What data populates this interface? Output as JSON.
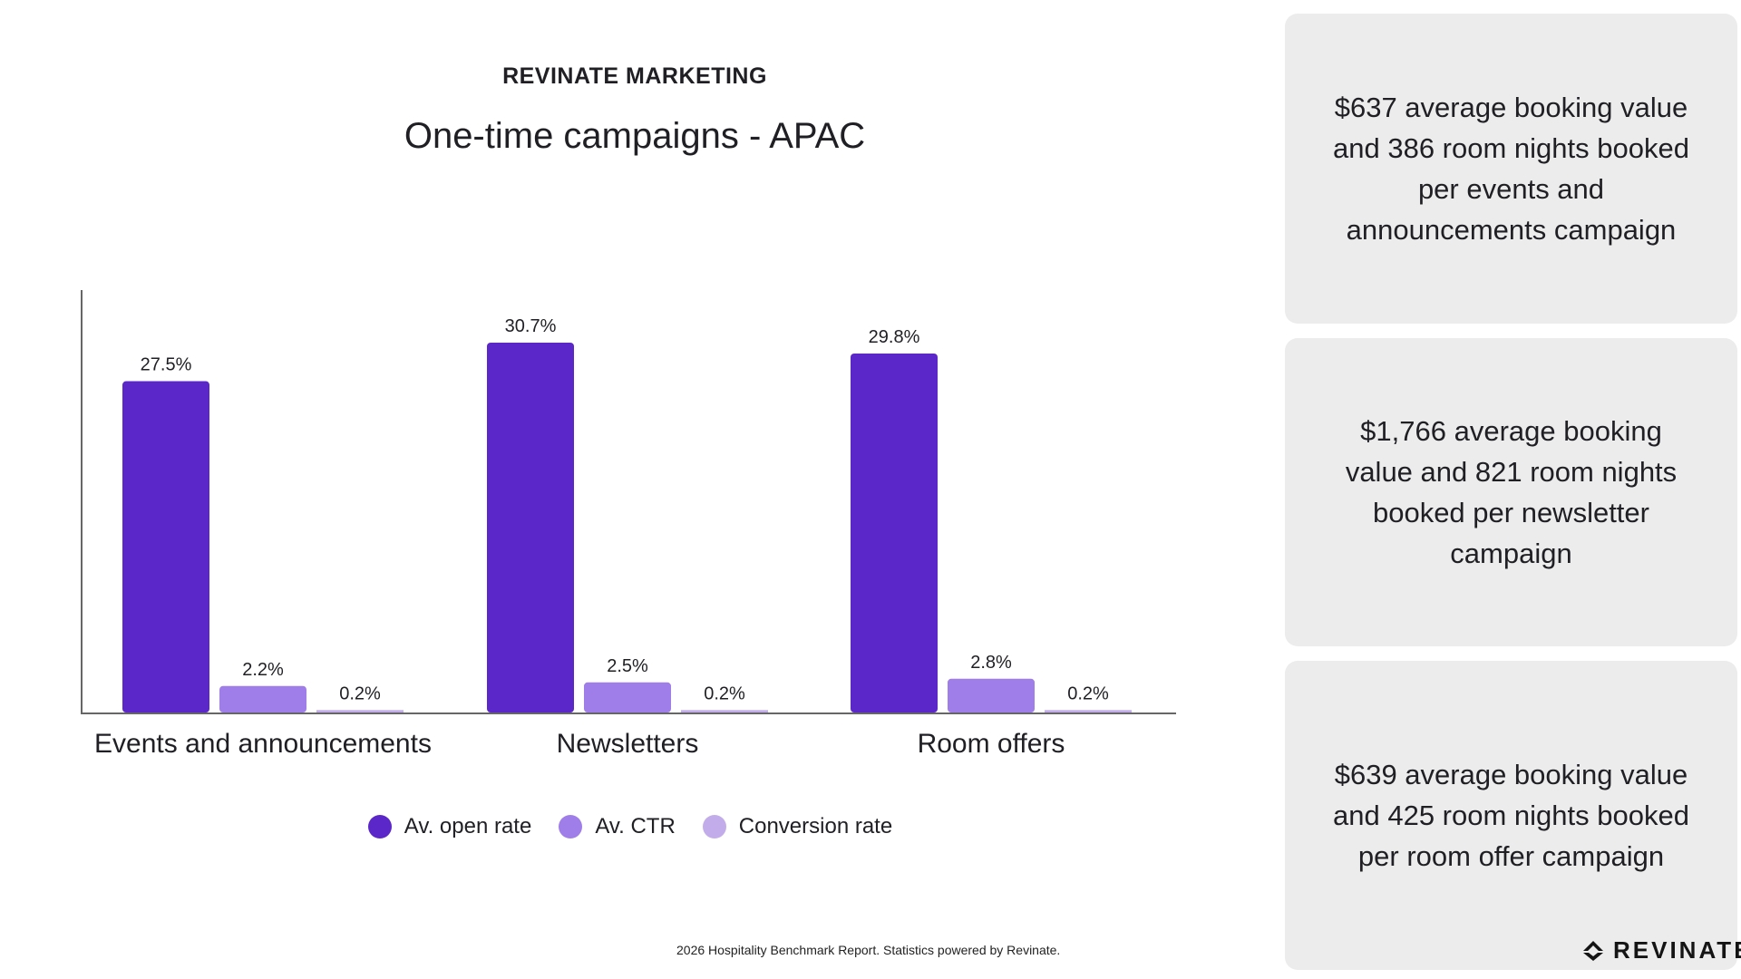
{
  "header": {
    "eyebrow": "REVINATE MARKETING"
  },
  "colors": {
    "open_rate": "#5b27c9",
    "ctr": "#9f7ee9",
    "conversion": "#c2acea",
    "card_bg": "#ececec",
    "axis": "#666666"
  },
  "chart_data": {
    "type": "bar",
    "title": "One-time campaigns - APAC",
    "categories": [
      "Events and announcements",
      "Newsletters",
      "Room offers"
    ],
    "series": [
      {
        "name": "Av. open rate",
        "values": [
          27.5,
          30.7,
          29.8
        ],
        "labels": [
          "27.5%",
          "30.7%",
          "29.8%"
        ]
      },
      {
        "name": "Av. CTR",
        "values": [
          2.2,
          2.5,
          2.8
        ],
        "labels": [
          "2.2%",
          "2.5%",
          "2.8%"
        ]
      },
      {
        "name": "Conversion rate",
        "values": [
          0.2,
          0.2,
          0.2
        ],
        "labels": [
          "0.2%",
          "0.2%",
          "0.2%"
        ]
      }
    ],
    "xlabel": "",
    "ylabel": "",
    "ylim": [
      0,
      35
    ],
    "grid": false,
    "legend_position": "bottom"
  },
  "cards": [
    {
      "text": "$637 average booking value\nand 386 room nights booked\nper events and\nannouncements campaign"
    },
    {
      "text": "$1,766 average booking\nvalue and 821 room nights\nbooked per newsletter\ncampaign"
    },
    {
      "text": "$639  average booking value\nand 425 room nights booked\nper room offer campaign"
    }
  ],
  "footnote": "2026 Hospitality Benchmark Report. Statistics powered by Revinate.",
  "logo": {
    "text": "REVINATE",
    "icon": "revinate-logo-icon"
  }
}
